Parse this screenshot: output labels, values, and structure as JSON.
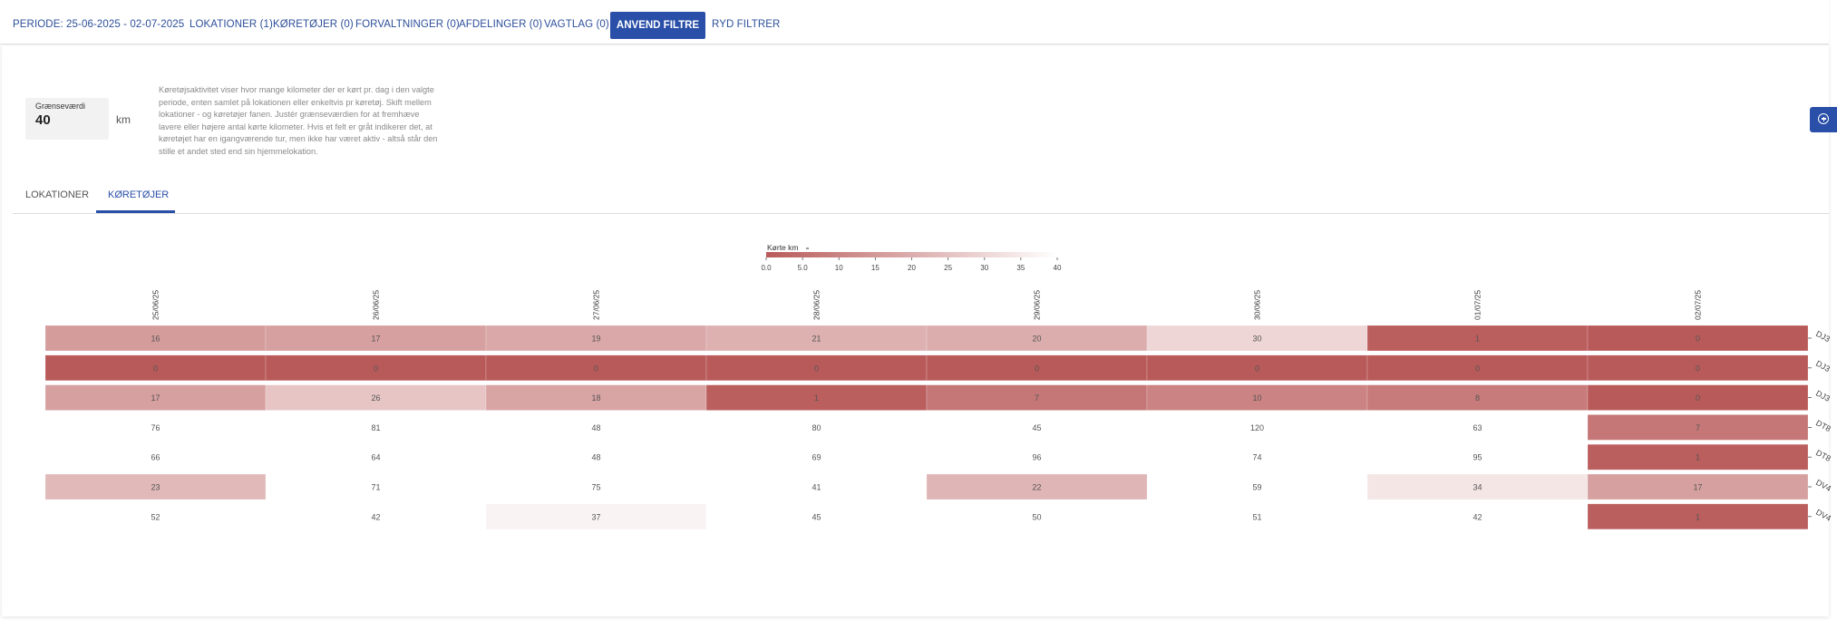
{
  "filterbar": {
    "period": "PERIODE: 25-06-2025 - 02-07-2025",
    "locations": "LOKATIONER (1)",
    "vehicles": "KØRETØJER (0)",
    "administrations": "FORVALTNINGER (0)",
    "departments": "AFDELINGER (0)",
    "shifts": "VAGTLAG (0)",
    "apply": "ANVEND FILTRE",
    "clear": "RYD FILTRER"
  },
  "threshold": {
    "label": "Grænseværdi",
    "value": "40",
    "unit": "km"
  },
  "description": "Køretøjsaktivitet viser hvor mange kilometer der er kørt pr. dag i den valgte periode, enten samlet på lokationen eller enkeltvis pr køretøj. Skift mellem lokationer - og køretøjer fanen. Justér grænseværdien for at fremhæve lavere eller højere antal kørte kilometer. Hvis et felt er gråt indikerer det, at køretøjet har en igangværende tur, men ikke har været aktiv - altså står den stille et andet sted end sin hjemmelokation.",
  "tabs": [
    {
      "label": "LOKATIONER"
    },
    {
      "label": "KØRETØJER"
    }
  ],
  "colors": {
    "accent": "#2a4fa8",
    "link": "#2d4f9a",
    "scale_low": "#b95a5a",
    "scale_high": "#ffffff"
  },
  "chart_data": {
    "type": "heatmap",
    "legend_title": "Kørte km",
    "legend_ticks": [
      "0.0",
      "5.0",
      "10",
      "15",
      "20",
      "25",
      "30",
      "35",
      "40"
    ],
    "color_domain": [
      0,
      40
    ],
    "columns": [
      "25/06/25",
      "26/06/25",
      "27/06/25",
      "28/06/25",
      "29/06/25",
      "30/06/25",
      "01/07/25",
      "02/07/25"
    ],
    "rows": [
      "DJ3",
      "DJ3",
      "DJ3",
      "DT8",
      "DT8",
      "DV4",
      "DV4"
    ],
    "values": [
      [
        16,
        17,
        19,
        21,
        20,
        30,
        1,
        0
      ],
      [
        0,
        0,
        0,
        0,
        0,
        0,
        0,
        0
      ],
      [
        17,
        26,
        18,
        1,
        7,
        10,
        8,
        0
      ],
      [
        76,
        81,
        48,
        80,
        45,
        120,
        63,
        7
      ],
      [
        66,
        64,
        48,
        69,
        96,
        74,
        95,
        1
      ],
      [
        23,
        71,
        75,
        41,
        22,
        59,
        34,
        17
      ],
      [
        52,
        42,
        37,
        45,
        50,
        51,
        42,
        1
      ]
    ]
  }
}
